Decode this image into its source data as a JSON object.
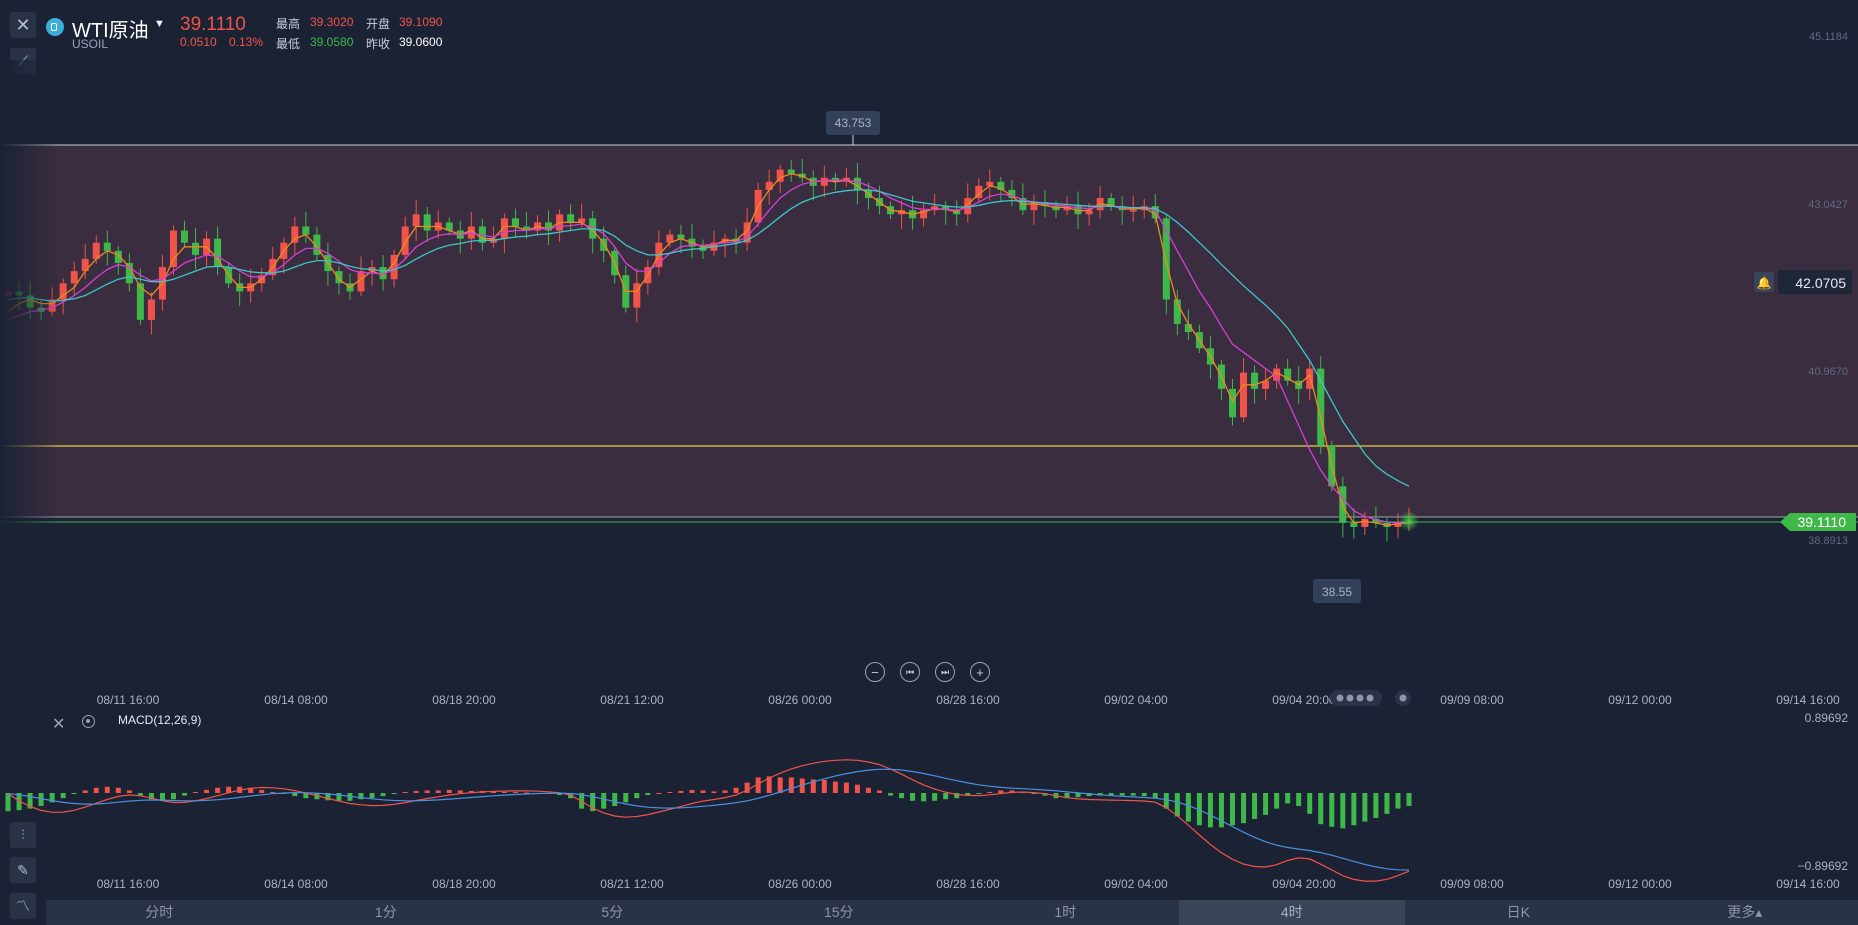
{
  "header": {
    "symbol_name": "WTI原油",
    "symbol_code": "USOIL",
    "price": "39.1110",
    "change": "0.0510",
    "change_pct": "0.13%",
    "high_label": "最高",
    "high": "39.3020",
    "open_label": "开盘",
    "open": "39.1090",
    "low_label": "最低",
    "low": "39.0580",
    "prev_label": "昨收",
    "prev_close": "39.0600"
  },
  "colors": {
    "up": "#f0534a",
    "down": "#3fb84a",
    "ma_fast": "#ee8a1f",
    "ma_mid": "#d63ed6",
    "ma_slow": "#3ec6c6",
    "macd_dif": "#f0534a",
    "macd_dea": "#4a90e2"
  },
  "chart_data": {
    "type": "candlestick",
    "y_axis_labels": [
      "45.1184",
      "43.0427",
      "40.9670",
      "38.8913"
    ],
    "ylim": [
      38.0,
      45.6
    ],
    "current_price_label": "39.1110",
    "alert_price_label": "42.0705",
    "max_marker": "43.753",
    "min_marker": "38.55",
    "x_labels": [
      "08/11 16:00",
      "08/14 08:00",
      "08/18 20:00",
      "08/21 12:00",
      "08/26 00:00",
      "08/28 16:00",
      "09/02 04:00",
      "09/04 20:00",
      "09/09 08:00",
      "09/12 00:00",
      "09/14 16:00"
    ],
    "close_series": [
      41.95,
      41.9,
      41.75,
      41.7,
      41.85,
      42.05,
      42.2,
      42.35,
      42.55,
      42.45,
      42.3,
      42.05,
      41.6,
      41.85,
      42.25,
      42.7,
      42.55,
      42.4,
      42.6,
      42.25,
      42.05,
      41.95,
      42.05,
      42.15,
      42.35,
      42.55,
      42.75,
      42.65,
      42.4,
      42.2,
      42.05,
      41.95,
      42.2,
      42.25,
      42.1,
      42.4,
      42.75,
      42.9,
      42.7,
      42.8,
      42.7,
      42.6,
      42.75,
      42.55,
      42.6,
      42.85,
      42.75,
      42.7,
      42.8,
      42.7,
      42.9,
      42.8,
      42.85,
      42.6,
      42.45,
      42.15,
      41.75,
      42.05,
      42.25,
      42.55,
      42.65,
      42.6,
      42.5,
      42.45,
      42.55,
      42.6,
      42.55,
      42.8,
      43.2,
      43.3,
      43.45,
      43.4,
      43.35,
      43.25,
      43.35,
      43.3,
      43.35,
      43.2,
      43.1,
      43.0,
      42.9,
      42.95,
      42.85,
      42.95,
      43.0,
      42.95,
      42.9,
      43.1,
      43.25,
      43.3,
      43.2,
      43.1,
      42.95,
      43.05,
      43.0,
      42.95,
      43.0,
      42.9,
      42.95,
      43.1,
      43.0,
      42.95,
      42.95,
      43.0,
      42.85,
      41.85,
      41.55,
      41.45,
      41.25,
      41.05,
      40.75,
      40.4,
      40.95,
      40.75,
      40.85,
      41.0,
      40.85,
      40.75,
      41.0,
      40.05,
      39.55,
      39.1,
      39.05,
      39.15,
      39.1,
      39.05,
      39.1,
      39.11
    ],
    "ma_fast_series": [
      41.7,
      41.8,
      41.85,
      41.8,
      41.8,
      41.9,
      42.0,
      42.2,
      42.35,
      42.45,
      42.4,
      42.25,
      42.0,
      41.9,
      42.05,
      42.35,
      42.5,
      42.5,
      42.5,
      42.35,
      42.15,
      42.0,
      42.0,
      42.1,
      42.25,
      42.45,
      42.6,
      42.65,
      42.5,
      42.3,
      42.1,
      42.0,
      42.1,
      42.2,
      42.15,
      42.3,
      42.55,
      42.75,
      42.75,
      42.75,
      42.7,
      42.65,
      42.7,
      42.6,
      42.6,
      42.75,
      42.75,
      42.7,
      42.75,
      42.72,
      42.8,
      42.8,
      42.8,
      42.7,
      42.55,
      42.3,
      41.95,
      41.95,
      42.15,
      42.4,
      42.55,
      42.6,
      42.55,
      42.5,
      42.52,
      42.58,
      42.58,
      42.7,
      43.0,
      43.2,
      43.35,
      43.4,
      43.37,
      43.3,
      43.32,
      43.3,
      43.32,
      43.25,
      43.15,
      43.05,
      42.95,
      42.93,
      42.9,
      42.93,
      42.97,
      42.96,
      42.93,
      43.02,
      43.15,
      43.25,
      43.22,
      43.12,
      43.02,
      43.03,
      43.01,
      42.98,
      42.99,
      42.94,
      42.95,
      43.03,
      43.01,
      42.97,
      42.96,
      42.98,
      42.9,
      42.3,
      41.8,
      41.55,
      41.35,
      41.15,
      40.9,
      40.6,
      40.8,
      40.8,
      40.85,
      40.95,
      40.88,
      40.8,
      40.92,
      40.4,
      39.8,
      39.3,
      39.1,
      39.12,
      39.1,
      39.07,
      39.09,
      39.1
    ],
    "ma_mid_series": [
      41.6,
      41.65,
      41.7,
      41.72,
      41.75,
      41.82,
      41.9,
      42.0,
      42.12,
      42.22,
      42.28,
      42.25,
      42.15,
      42.08,
      42.1,
      42.2,
      42.3,
      42.35,
      42.4,
      42.38,
      42.3,
      42.2,
      42.13,
      42.13,
      42.18,
      42.28,
      42.4,
      42.48,
      42.48,
      42.42,
      42.32,
      42.22,
      42.18,
      42.18,
      42.16,
      42.22,
      42.35,
      42.5,
      42.58,
      42.64,
      42.66,
      42.65,
      42.67,
      42.64,
      42.62,
      42.68,
      42.7,
      42.7,
      42.72,
      42.72,
      42.75,
      42.76,
      42.78,
      42.74,
      42.66,
      42.5,
      42.3,
      42.2,
      42.2,
      42.3,
      42.42,
      42.5,
      42.52,
      42.52,
      42.53,
      42.55,
      42.56,
      42.62,
      42.78,
      42.95,
      43.1,
      43.2,
      43.27,
      43.3,
      43.32,
      43.32,
      43.32,
      43.3,
      43.25,
      43.18,
      43.1,
      43.04,
      42.98,
      42.96,
      42.96,
      42.96,
      42.95,
      42.98,
      43.05,
      43.12,
      43.15,
      43.13,
      43.08,
      43.05,
      43.03,
      43.01,
      43.0,
      42.98,
      42.97,
      43.0,
      43.0,
      42.98,
      42.98,
      42.98,
      42.95,
      42.7,
      42.45,
      42.2,
      41.95,
      41.75,
      41.52,
      41.3,
      41.2,
      41.1,
      41.0,
      40.9,
      40.6,
      40.3,
      40.0,
      39.75,
      39.55,
      39.4,
      39.25,
      39.18,
      39.14,
      39.11,
      39.1,
      39.11
    ],
    "ma_slow_series": [
      41.85,
      41.87,
      41.87,
      41.85,
      41.83,
      41.84,
      41.86,
      41.9,
      41.97,
      42.04,
      42.1,
      42.13,
      42.1,
      42.07,
      42.07,
      42.1,
      42.15,
      42.2,
      42.25,
      42.26,
      42.25,
      42.22,
      42.19,
      42.18,
      42.18,
      42.2,
      42.25,
      42.3,
      42.33,
      42.33,
      42.3,
      42.26,
      42.23,
      42.22,
      42.2,
      42.22,
      42.27,
      42.35,
      42.42,
      42.48,
      42.52,
      42.54,
      42.57,
      42.58,
      42.58,
      42.6,
      42.62,
      42.63,
      42.65,
      42.66,
      42.68,
      42.7,
      42.72,
      42.72,
      42.7,
      42.63,
      42.52,
      42.45,
      42.4,
      42.4,
      42.42,
      42.45,
      42.47,
      42.48,
      42.5,
      42.52,
      42.54,
      42.58,
      42.66,
      42.76,
      42.87,
      42.97,
      43.05,
      43.1,
      43.14,
      43.17,
      43.19,
      43.2,
      43.2,
      43.18,
      43.14,
      43.1,
      43.06,
      43.04,
      43.02,
      43.0,
      42.99,
      42.99,
      43.01,
      43.04,
      43.06,
      43.07,
      43.06,
      43.05,
      43.04,
      43.03,
      43.02,
      43.01,
      43.0,
      43.0,
      43.0,
      42.99,
      42.98,
      42.98,
      42.97,
      42.9,
      42.8,
      42.68,
      42.55,
      42.42,
      42.28,
      42.15,
      42.02,
      41.9,
      41.78,
      41.65,
      41.5,
      41.3,
      41.1,
      40.85,
      40.6,
      40.35,
      40.15,
      39.95,
      39.8,
      39.7,
      39.62,
      39.55
    ],
    "macd_label": "MACD(12,26,9)",
    "macd_axis_labels": [
      "0.89692",
      "−0.89692"
    ],
    "macd_hist": [
      -0.35,
      -0.33,
      -0.3,
      -0.25,
      -0.18,
      -0.1,
      -0.02,
      0.05,
      0.1,
      0.12,
      0.1,
      0.05,
      -0.05,
      -0.12,
      -0.15,
      -0.12,
      -0.05,
      0.02,
      0.06,
      0.1,
      0.12,
      0.12,
      0.1,
      0.06,
      0.02,
      -0.02,
      -0.06,
      -0.1,
      -0.12,
      -0.14,
      -0.15,
      -0.15,
      -0.12,
      -0.1,
      -0.06,
      -0.02,
      0.02,
      0.04,
      0.05,
      0.05,
      0.06,
      0.05,
      0.04,
      0.04,
      0.03,
      0.02,
      0.02,
      0.01,
      0.0,
      -0.02,
      -0.04,
      -0.1,
      -0.3,
      -0.35,
      -0.3,
      -0.25,
      -0.18,
      -0.1,
      -0.04,
      0.0,
      0.02,
      0.04,
      0.06,
      0.05,
      0.03,
      0.05,
      0.1,
      0.2,
      0.3,
      0.32,
      0.3,
      0.3,
      0.28,
      0.26,
      0.25,
      0.22,
      0.2,
      0.16,
      0.1,
      0.05,
      -0.05,
      -0.1,
      -0.15,
      -0.16,
      -0.15,
      -0.12,
      -0.1,
      -0.05,
      -0.02,
      0.02,
      0.05,
      0.05,
      0.02,
      -0.02,
      -0.05,
      -0.1,
      -0.1,
      -0.08,
      -0.06,
      -0.05,
      -0.05,
      -0.05,
      -0.05,
      -0.06,
      -0.1,
      -0.3,
      -0.45,
      -0.55,
      -0.62,
      -0.66,
      -0.66,
      -0.62,
      -0.58,
      -0.5,
      -0.42,
      -0.3,
      -0.2,
      -0.25,
      -0.4,
      -0.6,
      -0.65,
      -0.68,
      -0.62,
      -0.55,
      -0.48,
      -0.4,
      -0.3,
      -0.25
    ]
  },
  "panel": {
    "close_label": "✕"
  },
  "tabs": [
    {
      "label": "分时",
      "active": false
    },
    {
      "label": "1分",
      "active": false
    },
    {
      "label": "5分",
      "active": false
    },
    {
      "label": "15分",
      "active": false
    },
    {
      "label": "1时",
      "active": false
    },
    {
      "label": "4时",
      "active": true
    },
    {
      "label": "日K",
      "active": false
    },
    {
      "label": "更多▴",
      "active": false
    }
  ],
  "controls": {
    "zoom_out": "−",
    "prev": "⏮",
    "next": "⏭",
    "zoom_in": "+"
  }
}
